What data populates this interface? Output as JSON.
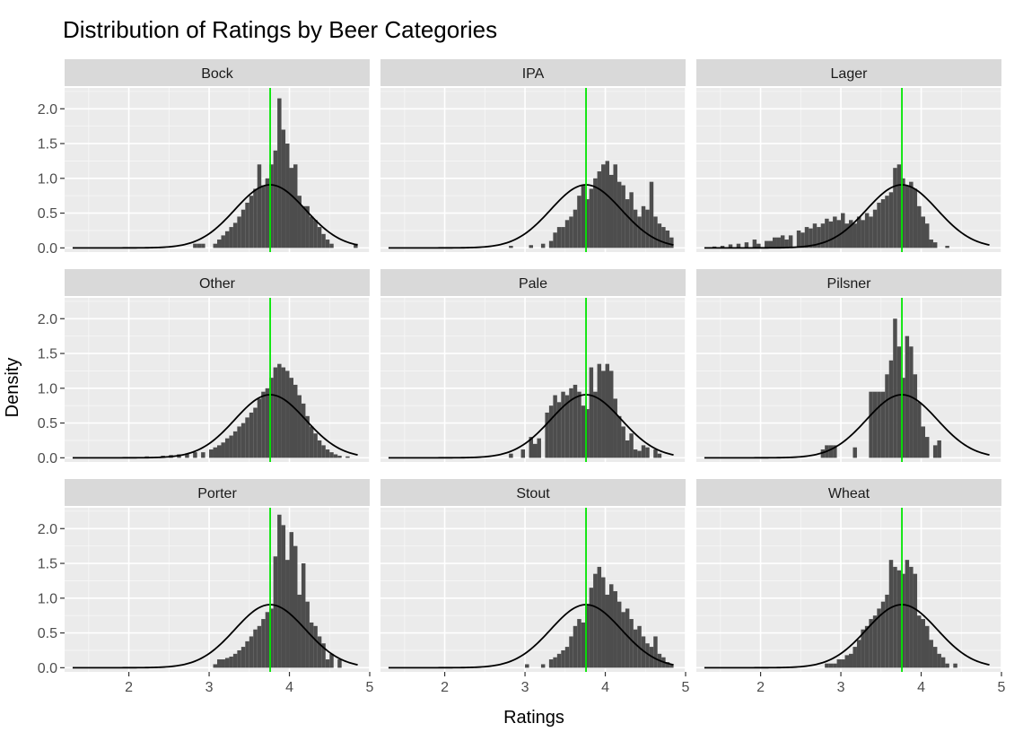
{
  "chart_data": {
    "type": "histogram-facets",
    "title": "Distribution of Ratings by Beer Categories",
    "xlabel": "Ratings",
    "ylabel": "Density",
    "xlim": [
      1.2,
      5.0
    ],
    "ylim": [
      -0.06,
      2.3
    ],
    "x_ticks": [
      2,
      3,
      4,
      5
    ],
    "y_ticks": [
      0.0,
      0.5,
      1.0,
      1.5,
      2.0
    ],
    "y_tick_labels": [
      "0.0",
      "0.5",
      "1.0",
      "1.5",
      "2.0"
    ],
    "x_tick_labels": [
      "2",
      "3",
      "4",
      "5"
    ],
    "reference_line": {
      "value": 3.76,
      "color": "#00e600"
    },
    "normal_curve": {
      "mean": 3.76,
      "sd": 0.44,
      "color": "#000000"
    },
    "bar_color": "#4d4d4d",
    "panel_background": "#ebebeb",
    "strip_background": "#d9d9d9",
    "facets": [
      {
        "name": "Bock",
        "bins": [
          [
            2.8,
            0.06
          ],
          [
            2.85,
            0.06
          ],
          [
            2.9,
            0.06
          ],
          [
            3.05,
            0.06
          ],
          [
            3.1,
            0.12
          ],
          [
            3.15,
            0.18
          ],
          [
            3.2,
            0.24
          ],
          [
            3.25,
            0.3
          ],
          [
            3.3,
            0.36
          ],
          [
            3.35,
            0.45
          ],
          [
            3.4,
            0.55
          ],
          [
            3.45,
            0.65
          ],
          [
            3.5,
            0.75
          ],
          [
            3.55,
            0.85
          ],
          [
            3.6,
            1.2
          ],
          [
            3.65,
            0.9
          ],
          [
            3.7,
            1.0
          ],
          [
            3.75,
            1.2
          ],
          [
            3.8,
            1.4
          ],
          [
            3.85,
            2.15
          ],
          [
            3.9,
            1.7
          ],
          [
            3.95,
            1.5
          ],
          [
            4.0,
            1.15
          ],
          [
            4.05,
            1.2
          ],
          [
            4.1,
            0.75
          ],
          [
            4.15,
            0.6
          ],
          [
            4.2,
            0.6
          ],
          [
            4.25,
            0.45
          ],
          [
            4.3,
            0.4
          ],
          [
            4.35,
            0.3
          ],
          [
            4.4,
            0.2
          ],
          [
            4.45,
            0.12
          ],
          [
            4.5,
            0.06
          ],
          [
            4.8,
            0.06
          ]
        ]
      },
      {
        "name": "IPA",
        "bins": [
          [
            2.8,
            0.03
          ],
          [
            3.05,
            0.04
          ],
          [
            3.2,
            0.06
          ],
          [
            3.3,
            0.1
          ],
          [
            3.35,
            0.22
          ],
          [
            3.4,
            0.3
          ],
          [
            3.45,
            0.3
          ],
          [
            3.5,
            0.4
          ],
          [
            3.55,
            0.45
          ],
          [
            3.6,
            0.55
          ],
          [
            3.65,
            0.75
          ],
          [
            3.7,
            0.9
          ],
          [
            3.75,
            0.7
          ],
          [
            3.8,
            0.85
          ],
          [
            3.85,
            1.0
          ],
          [
            3.9,
            1.1
          ],
          [
            3.95,
            1.2
          ],
          [
            4.0,
            1.25
          ],
          [
            4.05,
            1.05
          ],
          [
            4.1,
            1.2
          ],
          [
            4.15,
            0.95
          ],
          [
            4.2,
            0.9
          ],
          [
            4.25,
            0.7
          ],
          [
            4.3,
            0.8
          ],
          [
            4.35,
            0.55
          ],
          [
            4.4,
            0.45
          ],
          [
            4.45,
            0.6
          ],
          [
            4.5,
            0.55
          ],
          [
            4.55,
            0.95
          ],
          [
            4.6,
            0.45
          ],
          [
            4.65,
            0.35
          ],
          [
            4.7,
            0.3
          ],
          [
            4.75,
            0.25
          ],
          [
            4.8,
            0.15
          ]
        ]
      },
      {
        "name": "Lager",
        "bins": [
          [
            1.4,
            0.02
          ],
          [
            1.5,
            0.03
          ],
          [
            1.6,
            0.05
          ],
          [
            1.7,
            0.06
          ],
          [
            1.8,
            0.08
          ],
          [
            1.9,
            0.12
          ],
          [
            1.95,
            0.06
          ],
          [
            2.05,
            0.1
          ],
          [
            2.1,
            0.1
          ],
          [
            2.15,
            0.15
          ],
          [
            2.2,
            0.15
          ],
          [
            2.25,
            0.18
          ],
          [
            2.3,
            0.12
          ],
          [
            2.35,
            0.18
          ],
          [
            2.45,
            0.25
          ],
          [
            2.5,
            0.22
          ],
          [
            2.55,
            0.3
          ],
          [
            2.6,
            0.28
          ],
          [
            2.65,
            0.35
          ],
          [
            2.7,
            0.3
          ],
          [
            2.75,
            0.35
          ],
          [
            2.8,
            0.42
          ],
          [
            2.85,
            0.38
          ],
          [
            2.9,
            0.45
          ],
          [
            2.95,
            0.4
          ],
          [
            3.0,
            0.5
          ],
          [
            3.05,
            0.35
          ],
          [
            3.1,
            0.4
          ],
          [
            3.15,
            0.35
          ],
          [
            3.2,
            0.45
          ],
          [
            3.25,
            0.4
          ],
          [
            3.3,
            0.5
          ],
          [
            3.35,
            0.45
          ],
          [
            3.4,
            0.55
          ],
          [
            3.45,
            0.65
          ],
          [
            3.5,
            0.7
          ],
          [
            3.55,
            0.75
          ],
          [
            3.6,
            0.8
          ],
          [
            3.65,
            1.15
          ],
          [
            3.7,
            1.2
          ],
          [
            3.75,
            1.0
          ],
          [
            3.8,
            0.9
          ],
          [
            3.85,
            0.95
          ],
          [
            3.9,
            0.85
          ],
          [
            3.95,
            0.6
          ],
          [
            4.0,
            0.45
          ],
          [
            4.05,
            0.35
          ],
          [
            4.1,
            0.12
          ],
          [
            4.15,
            0.08
          ],
          [
            4.3,
            0.03
          ]
        ]
      },
      {
        "name": "Other",
        "bins": [
          [
            1.8,
            0.01
          ],
          [
            2.0,
            0.01
          ],
          [
            2.2,
            0.02
          ],
          [
            2.4,
            0.03
          ],
          [
            2.5,
            0.04
          ],
          [
            2.6,
            0.05
          ],
          [
            2.7,
            0.06
          ],
          [
            2.8,
            0.08
          ],
          [
            2.9,
            0.08
          ],
          [
            3.0,
            0.12
          ],
          [
            3.05,
            0.15
          ],
          [
            3.1,
            0.18
          ],
          [
            3.15,
            0.22
          ],
          [
            3.2,
            0.28
          ],
          [
            3.25,
            0.32
          ],
          [
            3.3,
            0.38
          ],
          [
            3.35,
            0.45
          ],
          [
            3.4,
            0.5
          ],
          [
            3.45,
            0.58
          ],
          [
            3.5,
            0.65
          ],
          [
            3.55,
            0.72
          ],
          [
            3.6,
            0.85
          ],
          [
            3.65,
            0.95
          ],
          [
            3.7,
            1.0
          ],
          [
            3.75,
            1.15
          ],
          [
            3.8,
            1.3
          ],
          [
            3.85,
            1.35
          ],
          [
            3.9,
            1.3
          ],
          [
            3.95,
            1.25
          ],
          [
            4.0,
            1.15
          ],
          [
            4.05,
            1.05
          ],
          [
            4.1,
            0.9
          ],
          [
            4.15,
            0.78
          ],
          [
            4.2,
            0.6
          ],
          [
            4.25,
            0.45
          ],
          [
            4.3,
            0.35
          ],
          [
            4.35,
            0.25
          ],
          [
            4.4,
            0.18
          ],
          [
            4.45,
            0.12
          ],
          [
            4.5,
            0.08
          ],
          [
            4.55,
            0.05
          ],
          [
            4.6,
            0.03
          ],
          [
            4.7,
            0.02
          ]
        ]
      },
      {
        "name": "Pale",
        "bins": [
          [
            2.8,
            0.06
          ],
          [
            2.95,
            0.12
          ],
          [
            3.05,
            0.3
          ],
          [
            3.1,
            0.2
          ],
          [
            3.15,
            0.28
          ],
          [
            3.25,
            0.65
          ],
          [
            3.3,
            0.75
          ],
          [
            3.35,
            0.9
          ],
          [
            3.4,
            0.8
          ],
          [
            3.45,
            0.95
          ],
          [
            3.5,
            0.9
          ],
          [
            3.55,
            1.0
          ],
          [
            3.6,
            1.05
          ],
          [
            3.65,
            0.95
          ],
          [
            3.7,
            0.75
          ],
          [
            3.75,
            0.7
          ],
          [
            3.8,
            1.3
          ],
          [
            3.85,
            0.95
          ],
          [
            3.9,
            1.35
          ],
          [
            3.95,
            1.25
          ],
          [
            4.0,
            1.35
          ],
          [
            4.05,
            1.25
          ],
          [
            4.1,
            0.85
          ],
          [
            4.15,
            0.6
          ],
          [
            4.2,
            0.45
          ],
          [
            4.25,
            0.25
          ],
          [
            4.3,
            0.35
          ],
          [
            4.35,
            0.12
          ],
          [
            4.4,
            0.1
          ],
          [
            4.45,
            0.18
          ],
          [
            4.5,
            0.15
          ],
          [
            4.6,
            0.12
          ],
          [
            4.65,
            0.06
          ]
        ]
      },
      {
        "name": "Pilsner",
        "bins": [
          [
            2.75,
            0.12
          ],
          [
            2.8,
            0.18
          ],
          [
            2.85,
            0.18
          ],
          [
            2.9,
            0.18
          ],
          [
            3.15,
            0.15
          ],
          [
            3.35,
            0.95
          ],
          [
            3.4,
            0.95
          ],
          [
            3.45,
            0.95
          ],
          [
            3.5,
            0.95
          ],
          [
            3.55,
            1.2
          ],
          [
            3.6,
            1.4
          ],
          [
            3.65,
            2.0
          ],
          [
            3.7,
            1.6
          ],
          [
            3.75,
            1.15
          ],
          [
            3.8,
            1.75
          ],
          [
            3.85,
            1.6
          ],
          [
            3.9,
            1.2
          ],
          [
            3.95,
            0.8
          ],
          [
            4.0,
            0.45
          ],
          [
            4.05,
            0.3
          ],
          [
            4.15,
            0.18
          ],
          [
            4.2,
            0.25
          ]
        ]
      },
      {
        "name": "Porter",
        "bins": [
          [
            3.05,
            0.05
          ],
          [
            3.1,
            0.12
          ],
          [
            3.15,
            0.12
          ],
          [
            3.2,
            0.14
          ],
          [
            3.25,
            0.16
          ],
          [
            3.3,
            0.2
          ],
          [
            3.35,
            0.25
          ],
          [
            3.4,
            0.3
          ],
          [
            3.45,
            0.38
          ],
          [
            3.5,
            0.45
          ],
          [
            3.55,
            0.55
          ],
          [
            3.6,
            0.6
          ],
          [
            3.65,
            0.7
          ],
          [
            3.7,
            0.8
          ],
          [
            3.75,
            0.85
          ],
          [
            3.8,
            1.6
          ],
          [
            3.85,
            2.2
          ],
          [
            3.9,
            2.05
          ],
          [
            3.95,
            1.55
          ],
          [
            4.0,
            1.95
          ],
          [
            4.05,
            1.75
          ],
          [
            4.1,
            1.05
          ],
          [
            4.15,
            1.5
          ],
          [
            4.2,
            0.95
          ],
          [
            4.25,
            0.65
          ],
          [
            4.3,
            0.6
          ],
          [
            4.35,
            0.45
          ],
          [
            4.4,
            0.35
          ],
          [
            4.45,
            0.12
          ],
          [
            4.5,
            0.2
          ],
          [
            4.6,
            0.12
          ]
        ]
      },
      {
        "name": "Stout",
        "bins": [
          [
            3.0,
            0.05
          ],
          [
            3.2,
            0.05
          ],
          [
            3.3,
            0.12
          ],
          [
            3.35,
            0.15
          ],
          [
            3.4,
            0.2
          ],
          [
            3.45,
            0.25
          ],
          [
            3.5,
            0.3
          ],
          [
            3.55,
            0.45
          ],
          [
            3.6,
            0.6
          ],
          [
            3.65,
            0.7
          ],
          [
            3.7,
            0.65
          ],
          [
            3.75,
            0.9
          ],
          [
            3.8,
            1.15
          ],
          [
            3.85,
            1.35
          ],
          [
            3.9,
            1.45
          ],
          [
            3.95,
            1.3
          ],
          [
            4.0,
            1.05
          ],
          [
            4.05,
            1.2
          ],
          [
            4.1,
            1.1
          ],
          [
            4.15,
            0.95
          ],
          [
            4.2,
            0.8
          ],
          [
            4.25,
            0.85
          ],
          [
            4.3,
            0.7
          ],
          [
            4.35,
            0.55
          ],
          [
            4.4,
            0.6
          ],
          [
            4.45,
            0.45
          ],
          [
            4.5,
            0.35
          ],
          [
            4.55,
            0.3
          ],
          [
            4.6,
            0.45
          ],
          [
            4.65,
            0.2
          ],
          [
            4.7,
            0.15
          ],
          [
            4.75,
            0.08
          ],
          [
            4.8,
            0.05
          ]
        ]
      },
      {
        "name": "Wheat",
        "bins": [
          [
            2.8,
            0.06
          ],
          [
            2.85,
            0.06
          ],
          [
            2.9,
            0.06
          ],
          [
            2.95,
            0.12
          ],
          [
            3.0,
            0.12
          ],
          [
            3.05,
            0.18
          ],
          [
            3.1,
            0.2
          ],
          [
            3.15,
            0.3
          ],
          [
            3.2,
            0.4
          ],
          [
            3.25,
            0.55
          ],
          [
            3.3,
            0.6
          ],
          [
            3.35,
            0.7
          ],
          [
            3.4,
            0.75
          ],
          [
            3.45,
            0.85
          ],
          [
            3.5,
            0.95
          ],
          [
            3.55,
            1.05
          ],
          [
            3.6,
            1.55
          ],
          [
            3.65,
            1.45
          ],
          [
            3.7,
            1.4
          ],
          [
            3.75,
            1.35
          ],
          [
            3.8,
            1.55
          ],
          [
            3.85,
            1.45
          ],
          [
            3.9,
            1.35
          ],
          [
            3.95,
            0.75
          ],
          [
            4.0,
            0.7
          ],
          [
            4.05,
            0.6
          ],
          [
            4.1,
            0.4
          ],
          [
            4.15,
            0.3
          ],
          [
            4.2,
            0.2
          ],
          [
            4.25,
            0.15
          ],
          [
            4.3,
            0.06
          ],
          [
            4.4,
            0.06
          ]
        ]
      }
    ]
  }
}
